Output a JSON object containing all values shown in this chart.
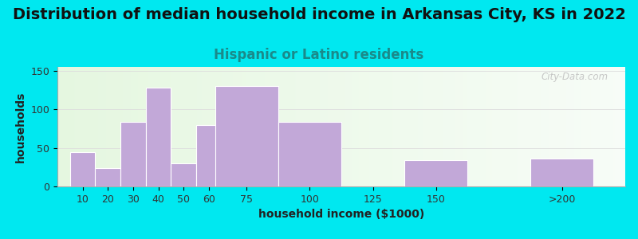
{
  "title": "Distribution of median household income in Arkansas City, KS in 2022",
  "subtitle": "Hispanic or Latino residents",
  "xlabel": "household income ($1000)",
  "ylabel": "households",
  "bar_labels": [
    "10",
    "20",
    "30",
    "40",
    "50",
    "60",
    "75",
    "100",
    "125",
    "150",
    ">200"
  ],
  "bar_heights": [
    44,
    24,
    84,
    128,
    30,
    80,
    130,
    84,
    0,
    34,
    36
  ],
  "bar_widths": [
    10,
    10,
    10,
    10,
    10,
    15,
    25,
    25,
    25,
    25,
    25
  ],
  "bar_lefts": [
    5,
    15,
    25,
    35,
    45,
    55,
    62.5,
    87.5,
    112.5,
    137.5,
    187.5
  ],
  "bar_color": "#c2a8d8",
  "bar_edgecolor": "#ffffff",
  "background_outer": "#00e8f0",
  "ylim": [
    0,
    155
  ],
  "xlim": [
    0,
    225
  ],
  "yticks": [
    0,
    50,
    100,
    150
  ],
  "xtick_positions": [
    10,
    20,
    30,
    40,
    50,
    60,
    75,
    100,
    125,
    150,
    200
  ],
  "xtick_labels": [
    "10",
    "20",
    "30",
    "40",
    "50",
    "60",
    "75",
    "100",
    "125",
    "150",
    ">200"
  ],
  "title_fontsize": 14,
  "subtitle_fontsize": 12,
  "subtitle_color": "#1a8a8a",
  "axis_label_fontsize": 10,
  "tick_fontsize": 9,
  "watermark": "City-Data.com",
  "figsize": [
    8.0,
    3.0
  ],
  "dpi": 100
}
